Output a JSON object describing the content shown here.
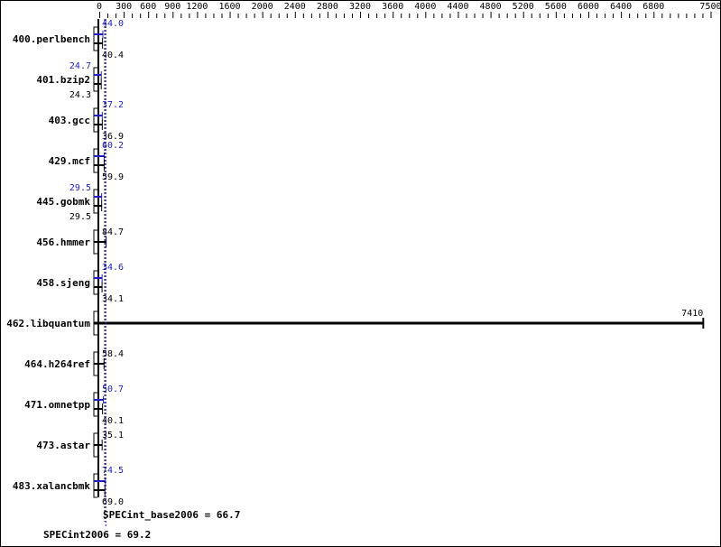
{
  "chart_data": {
    "type": "bar",
    "orientation": "horizontal",
    "xlim": [
      0,
      7500
    ],
    "tick_labels": [
      0,
      300,
      600,
      900,
      1200,
      1600,
      2000,
      2400,
      2800,
      3200,
      3600,
      4000,
      4400,
      4800,
      5200,
      5600,
      6000,
      6400,
      6800,
      7500
    ],
    "categories": [
      "400.perlbench",
      "401.bzip2",
      "403.gcc",
      "429.mcf",
      "445.gobmk",
      "456.hmmer",
      "458.sjeng",
      "462.libquantum",
      "464.h264ref",
      "471.omnetpp",
      "473.astar",
      "483.xalancbmk"
    ],
    "series": [
      {
        "name": "base",
        "color": "#000000",
        "values": [
          40.4,
          24.3,
          36.9,
          59.9,
          29.5,
          84.7,
          34.1,
          7410,
          58.4,
          40.1,
          35.1,
          69.0
        ]
      },
      {
        "name": "peak",
        "color": "#2020c0",
        "values": [
          44.0,
          24.7,
          37.2,
          60.2,
          29.5,
          null,
          34.6,
          null,
          null,
          50.7,
          null,
          74.5
        ]
      }
    ],
    "summary": {
      "base_label": "SPECint_base2006 = 66.7",
      "base_value": 66.7,
      "peak_label": "SPECint2006 = 69.2",
      "peak_value": 69.2
    },
    "grid": false
  }
}
